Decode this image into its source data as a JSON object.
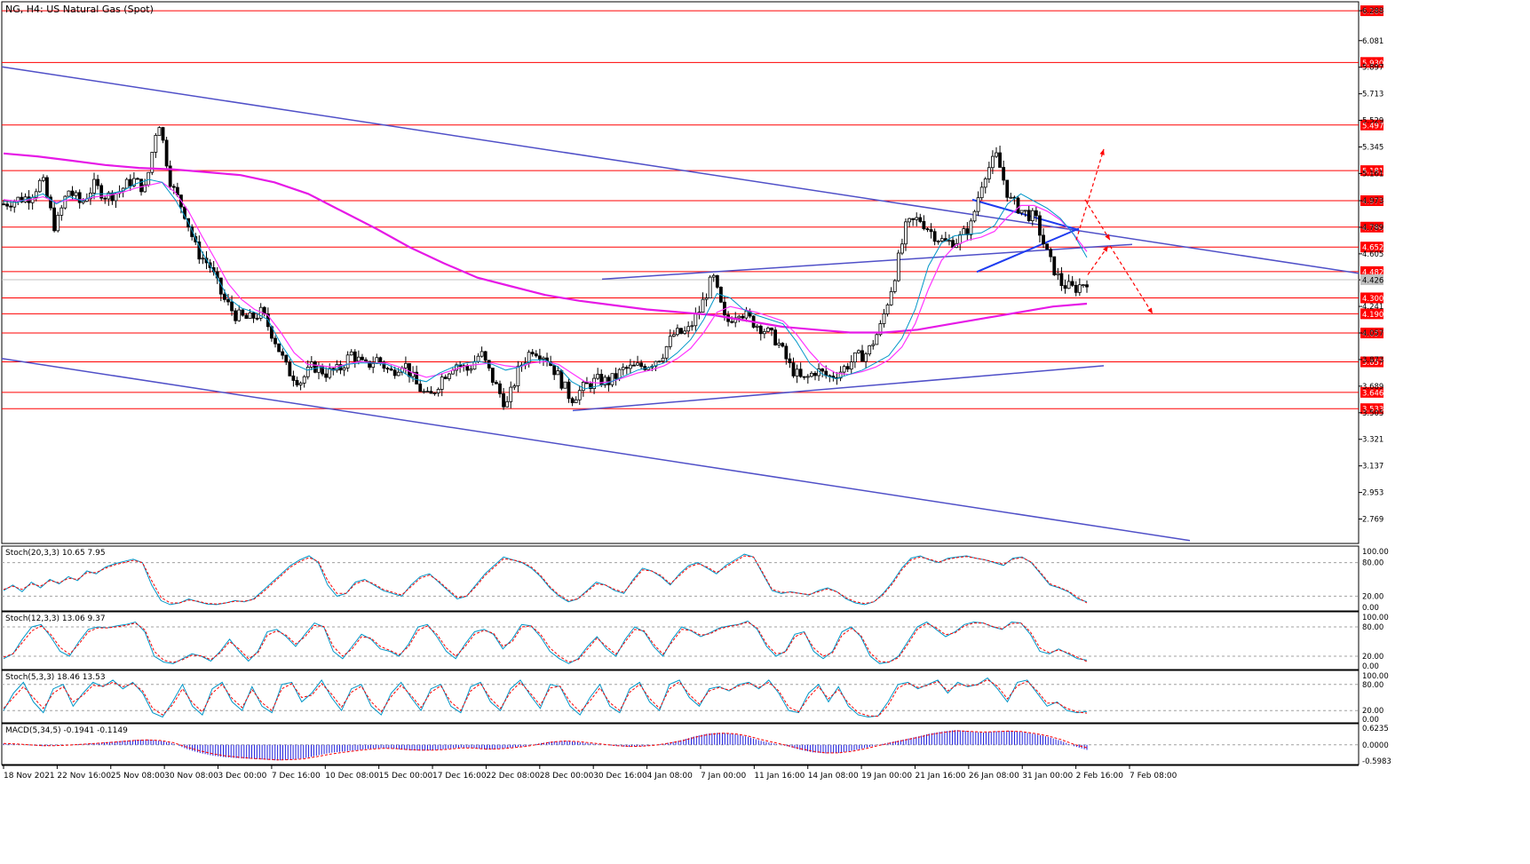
{
  "window": {
    "title": "NG, H4:  US Natural Gas (Spot)"
  },
  "colors": {
    "background": "#ffffff",
    "frame": "#000000",
    "candle": "#000000",
    "ema_fast": "#0096c8",
    "ema_mid": "#ff33ff",
    "ema_slow": "#e619e6",
    "hline": "#ff0000",
    "trendline": "#5050c8",
    "triangle": "#1e3cf0",
    "projection": "#ff0000",
    "stoch_main": "#0096c8",
    "stoch_signal": "#ff0000",
    "macd_hist": "#1e1edc",
    "macd_signal": "#ff0000",
    "label_bg": "#ff0000",
    "label_fg": "#ffffff",
    "current_price_bg": "#c0c0c0"
  },
  "chart_data": {
    "type": "candlestick",
    "symbol": "NG",
    "timeframe": "H4",
    "title": "NG, H4:  US Natural Gas (Spot)",
    "ylim": [
      2.6,
      6.35
    ],
    "price_axis_ticks": [
      "6.288",
      "6.081",
      "5.897",
      "5.713",
      "5.529",
      "5.345",
      "5.161",
      "4.973",
      "4.789",
      "4.605",
      "4.425",
      "4.241",
      "4.057",
      "3.873",
      "3.689",
      "3.505",
      "3.321",
      "3.137",
      "2.953",
      "2.769"
    ],
    "time_axis_labels": [
      "18 Nov 2021",
      "22 Nov 16:00",
      "25 Nov 08:00",
      "30 Nov 08:00",
      "3 Dec 00:00",
      "7 Dec 16:00",
      "10 Dec 08:00",
      "15 Dec 00:00",
      "17 Dec 16:00",
      "22 Dec 08:00",
      "28 Dec 00:00",
      "30 Dec 16:00",
      "4 Jan 08:00",
      "7 Jan 00:00",
      "11 Jan 16:00",
      "14 Jan 08:00",
      "19 Jan 00:00",
      "21 Jan 16:00",
      "26 Jan 08:00",
      "31 Jan 00:00",
      "2 Feb 16:00",
      "7 Feb 08:00"
    ],
    "horizontal_levels": [
      "6.288",
      "5.930",
      "5.497",
      "5.181",
      "4.973",
      "4.790",
      "4.652",
      "4.482",
      "4.300",
      "4.190",
      "4.057",
      "3.857",
      "3.646",
      "3.533"
    ],
    "current_price": "4.426",
    "close_path": [
      4.95,
      4.98,
      5.0,
      5.12,
      4.78,
      5.05,
      4.95,
      5.08,
      5.0,
      5.04,
      5.12,
      5.05,
      5.55,
      5.08,
      4.9,
      4.62,
      4.52,
      4.3,
      4.18,
      4.15,
      4.2,
      4.02,
      3.8,
      3.72,
      3.83,
      3.78,
      3.8,
      3.92,
      3.82,
      3.88,
      3.78,
      3.86,
      3.7,
      3.6,
      3.75,
      3.85,
      3.8,
      3.92,
      3.72,
      3.55,
      3.82,
      3.95,
      3.9,
      3.76,
      3.6,
      3.68,
      3.73,
      3.72,
      3.8,
      3.82,
      3.84,
      3.9,
      4.05,
      4.06,
      4.22,
      4.45,
      4.12,
      4.22,
      4.14,
      4.08,
      4.0,
      3.82,
      3.72,
      3.8,
      3.75,
      3.8,
      3.88,
      3.92,
      4.1,
      4.42,
      4.8,
      4.85,
      4.75,
      4.68,
      4.7,
      4.8,
      5.15,
      5.28,
      4.98,
      4.9,
      4.85,
      4.58,
      4.4,
      4.36,
      4.42
    ],
    "ema_fast_path": [
      4.97,
      4.96,
      4.99,
      5.02,
      4.95,
      5.0,
      4.97,
      5.02,
      5.02,
      5.04,
      5.09,
      5.12,
      5.1,
      4.98,
      4.82,
      4.62,
      4.47,
      4.3,
      4.23,
      4.2,
      4.15,
      3.98,
      3.84,
      3.8,
      3.82,
      3.8,
      3.84,
      3.85,
      3.85,
      3.84,
      3.8,
      3.74,
      3.72,
      3.78,
      3.82,
      3.85,
      3.86,
      3.84,
      3.8,
      3.82,
      3.87,
      3.87,
      3.82,
      3.72,
      3.67,
      3.69,
      3.72,
      3.76,
      3.8,
      3.82,
      3.85,
      3.92,
      4.01,
      4.15,
      4.33,
      4.3,
      4.22,
      4.18,
      4.15,
      4.12,
      4.0,
      3.85,
      3.77,
      3.74,
      3.77,
      3.8,
      3.85,
      3.9,
      4.02,
      4.22,
      4.52,
      4.68,
      4.73,
      4.74,
      4.75,
      4.8,
      4.95,
      5.02,
      4.97,
      4.92,
      4.85,
      4.74,
      4.58
    ],
    "ema_mid_path": [
      4.98,
      4.97,
      4.98,
      5.0,
      4.96,
      4.98,
      4.98,
      5.0,
      5.01,
      5.03,
      5.06,
      5.08,
      5.1,
      5.03,
      4.9,
      4.73,
      4.57,
      4.4,
      4.29,
      4.22,
      4.18,
      4.06,
      3.92,
      3.84,
      3.83,
      3.82,
      3.84,
      3.86,
      3.85,
      3.85,
      3.82,
      3.78,
      3.75,
      3.77,
      3.8,
      3.83,
      3.84,
      3.85,
      3.83,
      3.82,
      3.85,
      3.86,
      3.84,
      3.78,
      3.72,
      3.71,
      3.72,
      3.75,
      3.78,
      3.8,
      3.83,
      3.88,
      3.95,
      4.06,
      4.2,
      4.24,
      4.22,
      4.2,
      4.17,
      4.14,
      4.05,
      3.93,
      3.83,
      3.78,
      3.77,
      3.79,
      3.82,
      3.87,
      3.96,
      4.12,
      4.36,
      4.56,
      4.66,
      4.7,
      4.72,
      4.76,
      4.86,
      4.94,
      4.94,
      4.9,
      4.84,
      4.74,
      4.62
    ],
    "ema_slow_path": [
      5.3,
      5.28,
      5.25,
      5.22,
      5.2,
      5.19,
      5.17,
      5.15,
      5.1,
      5.02,
      4.9,
      4.78,
      4.65,
      4.54,
      4.44,
      4.38,
      4.32,
      4.28,
      4.25,
      4.22,
      4.2,
      4.18,
      4.14,
      4.1,
      4.08,
      4.06,
      4.06,
      4.08,
      4.12,
      4.16,
      4.2,
      4.24,
      4.26
    ],
    "stoch_panels": [
      {
        "label": "Stoch(20,3,3) 10.65 7.95",
        "ylim": [
          0,
          100
        ],
        "ticks": [
          "100.00",
          "80.00",
          "20.00",
          "0.00"
        ],
        "levels": [
          80,
          20
        ],
        "main": [
          30,
          40,
          28,
          45,
          35,
          50,
          42,
          55,
          48,
          65,
          60,
          72,
          78,
          82,
          86,
          80,
          40,
          12,
          5,
          8,
          15,
          10,
          6,
          5,
          8,
          12,
          10,
          15,
          30,
          45,
          60,
          75,
          85,
          92,
          80,
          40,
          20,
          25,
          45,
          50,
          40,
          30,
          25,
          20,
          40,
          55,
          60,
          45,
          30,
          15,
          20,
          40,
          60,
          75,
          90,
          85,
          80,
          70,
          55,
          35,
          20,
          10,
          15,
          30,
          45,
          40,
          30,
          25,
          50,
          70,
          65,
          55,
          40,
          60,
          75,
          80,
          70,
          60,
          75,
          85,
          95,
          90,
          60,
          30,
          25,
          28,
          25,
          22,
          30,
          35,
          28,
          15,
          8,
          5,
          10,
          25,
          45,
          70,
          88,
          92,
          85,
          80,
          88,
          90,
          92,
          88,
          85,
          80,
          75,
          88,
          90,
          80,
          60,
          40,
          35,
          28,
          15,
          10
        ],
        "signal": [
          32,
          38,
          32,
          42,
          38,
          48,
          44,
          52,
          50,
          62,
          62,
          70,
          76,
          80,
          84,
          80,
          48,
          18,
          8,
          8,
          13,
          11,
          7,
          6,
          8,
          11,
          11,
          14,
          27,
          42,
          57,
          72,
          82,
          89,
          82,
          48,
          25,
          25,
          42,
          48,
          42,
          32,
          27,
          22,
          37,
          52,
          58,
          47,
          32,
          18,
          20,
          37,
          57,
          72,
          87,
          85,
          81,
          72,
          57,
          37,
          22,
          12,
          15,
          28,
          42,
          40,
          32,
          27,
          47,
          67,
          65,
          57,
          42,
          57,
          72,
          78,
          72,
          62,
          72,
          82,
          92,
          90,
          62,
          32,
          27,
          27,
          25,
          23,
          28,
          33,
          28,
          17,
          10,
          7,
          10,
          23,
          42,
          67,
          85,
          90,
          86,
          81,
          86,
          89,
          91,
          88,
          85,
          81,
          77,
          86,
          89,
          81,
          62,
          42,
          36,
          29,
          18,
          8
        ]
      },
      {
        "label": "Stoch(12,3,3) 13.06 9.37",
        "ylim": [
          0,
          100
        ],
        "ticks": [
          "100.00",
          "80.00",
          "20.00",
          "0.00"
        ],
        "levels": [
          80,
          20
        ],
        "main": [
          15,
          25,
          55,
          80,
          85,
          60,
          30,
          20,
          50,
          75,
          80,
          78,
          82,
          85,
          90,
          70,
          20,
          8,
          5,
          15,
          25,
          20,
          10,
          30,
          55,
          30,
          10,
          30,
          70,
          75,
          60,
          40,
          65,
          88,
          80,
          30,
          15,
          40,
          65,
          55,
          35,
          30,
          20,
          45,
          80,
          85,
          60,
          30,
          15,
          45,
          70,
          75,
          65,
          35,
          55,
          85,
          82,
          60,
          30,
          15,
          5,
          15,
          40,
          60,
          35,
          20,
          55,
          80,
          70,
          40,
          20,
          55,
          80,
          72,
          60,
          68,
          78,
          82,
          85,
          92,
          75,
          40,
          20,
          30,
          65,
          70,
          30,
          15,
          30,
          70,
          80,
          60,
          20,
          5,
          8,
          20,
          50,
          80,
          90,
          75,
          60,
          70,
          85,
          90,
          88,
          80,
          75,
          90,
          88,
          65,
          30,
          25,
          35,
          25,
          15,
          12
        ],
        "signal": [
          18,
          25,
          48,
          72,
          82,
          65,
          38,
          24,
          45,
          70,
          78,
          78,
          80,
          83,
          88,
          74,
          30,
          12,
          7,
          13,
          22,
          21,
          13,
          27,
          50,
          35,
          15,
          27,
          63,
          72,
          63,
          45,
          60,
          83,
          81,
          40,
          20,
          35,
          60,
          57,
          40,
          32,
          23,
          40,
          73,
          82,
          65,
          37,
          20,
          40,
          65,
          73,
          67,
          40,
          50,
          80,
          82,
          65,
          37,
          20,
          8,
          13,
          35,
          57,
          40,
          24,
          50,
          75,
          72,
          45,
          24,
          50,
          75,
          73,
          63,
          66,
          76,
          81,
          84,
          90,
          78,
          45,
          25,
          28,
          60,
          68,
          37,
          20,
          27,
          63,
          77,
          63,
          27,
          9,
          8,
          17,
          45,
          75,
          87,
          78,
          64,
          68,
          82,
          88,
          88,
          81,
          76,
          87,
          88,
          70,
          37,
          27,
          33,
          27,
          18,
          9
        ]
      },
      {
        "label": "Stoch(5,3,3) 18.46 13.53",
        "ylim": [
          0,
          100
        ],
        "ticks": [
          "100.00",
          "80.00",
          "20.00",
          "0.00"
        ],
        "levels": [
          80,
          20
        ],
        "main": [
          20,
          60,
          85,
          40,
          15,
          70,
          80,
          30,
          60,
          85,
          75,
          90,
          70,
          85,
          60,
          15,
          5,
          40,
          80,
          30,
          10,
          70,
          85,
          40,
          20,
          75,
          30,
          15,
          80,
          85,
          40,
          60,
          90,
          50,
          20,
          70,
          80,
          30,
          10,
          60,
          85,
          50,
          20,
          70,
          80,
          30,
          15,
          75,
          85,
          40,
          20,
          70,
          90,
          55,
          25,
          80,
          75,
          30,
          10,
          50,
          80,
          30,
          15,
          70,
          85,
          40,
          20,
          80,
          90,
          50,
          30,
          70,
          75,
          65,
          80,
          85,
          70,
          90,
          60,
          20,
          15,
          60,
          80,
          40,
          75,
          30,
          10,
          5,
          8,
          40,
          80,
          85,
          70,
          80,
          90,
          60,
          85,
          75,
          80,
          95,
          70,
          40,
          85,
          90,
          60,
          30,
          40,
          20,
          15,
          18
        ],
        "signal": [
          25,
          50,
          75,
          50,
          25,
          60,
          75,
          40,
          55,
          78,
          76,
          85,
          75,
          82,
          65,
          25,
          10,
          33,
          70,
          38,
          17,
          60,
          80,
          48,
          27,
          68,
          38,
          20,
          70,
          82,
          50,
          55,
          82,
          58,
          28,
          62,
          76,
          40,
          17,
          52,
          78,
          55,
          27,
          62,
          77,
          40,
          20,
          65,
          82,
          48,
          25,
          62,
          85,
          60,
          32,
          72,
          76,
          40,
          17,
          42,
          72,
          38,
          20,
          62,
          80,
          48,
          25,
          70,
          86,
          57,
          35,
          65,
          73,
          67,
          77,
          83,
          73,
          85,
          65,
          28,
          17,
          50,
          75,
          47,
          68,
          37,
          15,
          8,
          7,
          32,
          72,
          83,
          73,
          78,
          87,
          65,
          80,
          77,
          79,
          91,
          76,
          47,
          77,
          87,
          65,
          37,
          38,
          25,
          17,
          14
        ]
      }
    ],
    "macd": {
      "label": "MACD(5,34,5) -0.1941 -0.1149",
      "ylim": [
        -0.6,
        0.65
      ],
      "ticks": [
        "0.6235",
        "0.0000",
        "-0.5983"
      ],
      "hist": [
        0.04,
        0.02,
        -0.02,
        -0.05,
        -0.03,
        0.0,
        0.03,
        0.06,
        0.1,
        0.14,
        0.18,
        0.2,
        0.15,
        0.05,
        -0.15,
        -0.3,
        -0.4,
        -0.46,
        -0.5,
        -0.52,
        -0.55,
        -0.58,
        -0.55,
        -0.5,
        -0.4,
        -0.3,
        -0.25,
        -0.2,
        -0.15,
        -0.12,
        -0.15,
        -0.2,
        -0.22,
        -0.2,
        -0.15,
        -0.1,
        -0.12,
        -0.18,
        -0.15,
        -0.1,
        -0.05,
        0.05,
        0.12,
        0.15,
        0.1,
        0.05,
        0.0,
        -0.05,
        -0.08,
        -0.05,
        0.0,
        0.08,
        0.18,
        0.32,
        0.42,
        0.45,
        0.4,
        0.3,
        0.15,
        0.05,
        -0.05,
        -0.18,
        -0.28,
        -0.32,
        -0.3,
        -0.22,
        -0.12,
        0.0,
        0.1,
        0.2,
        0.3,
        0.42,
        0.5,
        0.55,
        0.5,
        0.45,
        0.5,
        0.52,
        0.48,
        0.4,
        0.3,
        0.15,
        -0.05,
        -0.19
      ],
      "signal": [
        0.05,
        0.03,
        0.0,
        -0.03,
        -0.03,
        -0.01,
        0.02,
        0.05,
        0.08,
        0.12,
        0.16,
        0.18,
        0.16,
        0.08,
        -0.08,
        -0.22,
        -0.33,
        -0.41,
        -0.46,
        -0.5,
        -0.53,
        -0.56,
        -0.55,
        -0.52,
        -0.44,
        -0.35,
        -0.28,
        -0.22,
        -0.17,
        -0.13,
        -0.14,
        -0.18,
        -0.2,
        -0.2,
        -0.17,
        -0.12,
        -0.12,
        -0.16,
        -0.15,
        -0.11,
        -0.06,
        0.02,
        0.1,
        0.14,
        0.12,
        0.07,
        0.02,
        -0.03,
        -0.06,
        -0.05,
        -0.01,
        0.06,
        0.15,
        0.28,
        0.38,
        0.43,
        0.41,
        0.33,
        0.2,
        0.09,
        -0.02,
        -0.14,
        -0.24,
        -0.3,
        -0.3,
        -0.24,
        -0.15,
        -0.03,
        0.07,
        0.17,
        0.27,
        0.38,
        0.46,
        0.52,
        0.5,
        0.47,
        0.49,
        0.51,
        0.49,
        0.42,
        0.33,
        0.2,
        0.02,
        -0.11
      ]
    },
    "annotations": {
      "trendlines": "descending channel (two parallel falling lines), rising support line, rising resistance line",
      "pattern": "symmetrical triangle near 4.65-4.97 with breakout arrows",
      "projections": "dashed red arrows: up toward 5.35, down toward 4.19"
    }
  }
}
